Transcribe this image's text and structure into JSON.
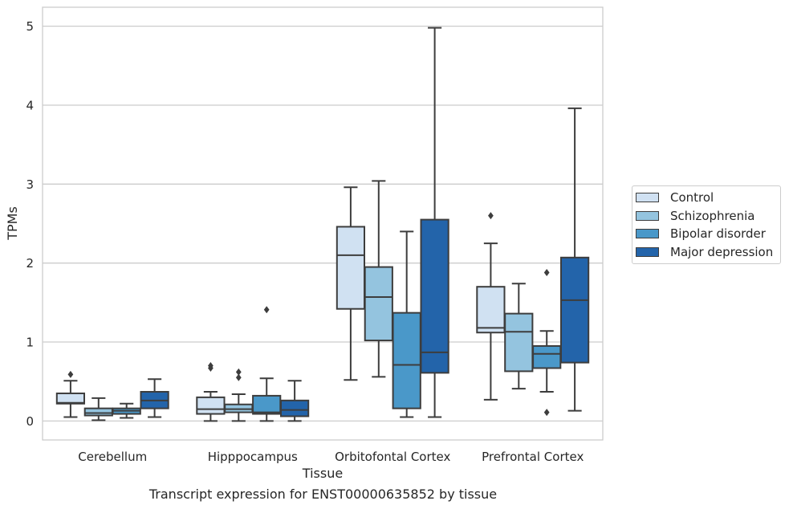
{
  "caption": "Transcript expression for ENST00000635852 by tissue",
  "chart_data": {
    "type": "box",
    "xlabel": "Tissue",
    "ylabel": "TPMs",
    "ylim": [
      -0.24,
      5.24
    ],
    "yticks": [
      0,
      1,
      2,
      3,
      4,
      5
    ],
    "grid": "horizontal",
    "legend_position": "right",
    "categories": [
      "Cerebellum",
      "Hipppocampus",
      "Orbitofontal Cortex",
      "Prefrontal Cortex"
    ],
    "series": [
      {
        "name": "Control",
        "color": "#d0e1f2",
        "boxes": [
          {
            "whisker_low": 0.05,
            "q1": 0.22,
            "median": 0.23,
            "q3": 0.35,
            "whisker_high": 0.51,
            "outliers": [
              0.59
            ]
          },
          {
            "whisker_low": 0.0,
            "q1": 0.09,
            "median": 0.15,
            "q3": 0.3,
            "whisker_high": 0.37,
            "outliers": [
              0.67,
              0.7
            ]
          },
          {
            "whisker_low": 0.52,
            "q1": 1.42,
            "median": 2.1,
            "q3": 2.46,
            "whisker_high": 2.96,
            "outliers": []
          },
          {
            "whisker_low": 0.27,
            "q1": 1.12,
            "median": 1.18,
            "q3": 1.7,
            "whisker_high": 2.25,
            "outliers": [
              2.6
            ]
          }
        ]
      },
      {
        "name": "Schizophrenia",
        "color": "#94c4df",
        "boxes": [
          {
            "whisker_low": 0.01,
            "q1": 0.07,
            "median": 0.1,
            "q3": 0.16,
            "whisker_high": 0.29,
            "outliers": []
          },
          {
            "whisker_low": 0.0,
            "q1": 0.11,
            "median": 0.15,
            "q3": 0.21,
            "whisker_high": 0.34,
            "outliers": [
              0.55,
              0.62
            ]
          },
          {
            "whisker_low": 0.56,
            "q1": 1.02,
            "median": 1.57,
            "q3": 1.95,
            "whisker_high": 3.04,
            "outliers": []
          },
          {
            "whisker_low": 0.41,
            "q1": 0.63,
            "median": 1.13,
            "q3": 1.36,
            "whisker_high": 1.74,
            "outliers": []
          }
        ]
      },
      {
        "name": "Bipolar disorder",
        "color": "#4a98c9",
        "boxes": [
          {
            "whisker_low": 0.04,
            "q1": 0.09,
            "median": 0.13,
            "q3": 0.16,
            "whisker_high": 0.22,
            "outliers": []
          },
          {
            "whisker_low": 0.0,
            "q1": 0.09,
            "median": 0.11,
            "q3": 0.32,
            "whisker_high": 0.54,
            "outliers": [
              1.41
            ]
          },
          {
            "whisker_low": 0.05,
            "q1": 0.16,
            "median": 0.71,
            "q3": 1.37,
            "whisker_high": 2.4,
            "outliers": []
          },
          {
            "whisker_low": 0.37,
            "q1": 0.67,
            "median": 0.85,
            "q3": 0.95,
            "whisker_high": 1.14,
            "outliers": [
              0.11,
              1.88
            ]
          }
        ]
      },
      {
        "name": "Major depression",
        "color": "#2364aa",
        "boxes": [
          {
            "whisker_low": 0.05,
            "q1": 0.16,
            "median": 0.26,
            "q3": 0.37,
            "whisker_high": 0.53,
            "outliers": []
          },
          {
            "whisker_low": 0.0,
            "q1": 0.06,
            "median": 0.14,
            "q3": 0.26,
            "whisker_high": 0.51,
            "outliers": []
          },
          {
            "whisker_low": 0.05,
            "q1": 0.61,
            "median": 0.87,
            "q3": 2.55,
            "whisker_high": 4.98,
            "outliers": []
          },
          {
            "whisker_low": 0.13,
            "q1": 0.74,
            "median": 1.53,
            "q3": 2.07,
            "whisker_high": 3.96,
            "outliers": []
          }
        ]
      }
    ]
  }
}
